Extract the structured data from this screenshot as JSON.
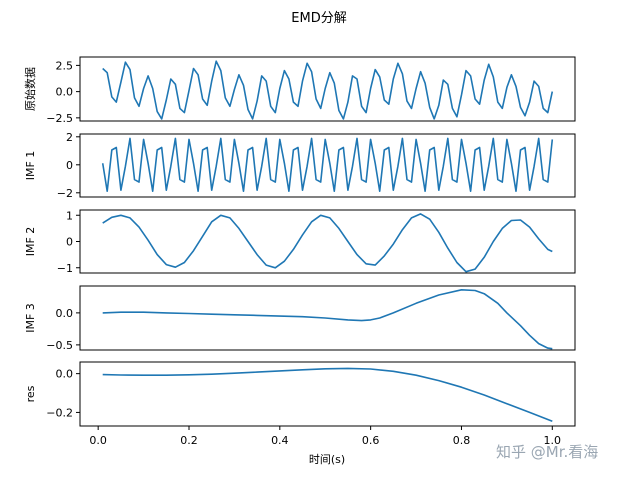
{
  "figure_title": "EMD分解",
  "x_axis_label": "时间(s)",
  "watermark": "知乎 @Mr.看海",
  "colors": {
    "line": "#1f77b4",
    "frame": "#000000",
    "watermark": "#9aa6b2"
  },
  "chart_data": [
    {
      "type": "line",
      "ylabel": "原始数据",
      "ylim": [
        -2.8,
        3.3
      ],
      "yticks": [
        2.5,
        0.0,
        -2.5
      ],
      "yticklabels": [
        "2.5",
        "0.0",
        "−2.5"
      ],
      "xlim": [
        -0.04,
        1.05
      ],
      "show_xticklabels": false,
      "x": [
        0.01,
        0.02,
        0.03,
        0.04,
        0.05,
        0.06,
        0.07,
        0.08,
        0.09,
        0.1,
        0.11,
        0.12,
        0.13,
        0.14,
        0.15,
        0.16,
        0.17,
        0.18,
        0.19,
        0.2,
        0.21,
        0.22,
        0.23,
        0.24,
        0.25,
        0.26,
        0.27,
        0.28,
        0.29,
        0.3,
        0.31,
        0.32,
        0.33,
        0.34,
        0.35,
        0.36,
        0.37,
        0.38,
        0.39,
        0.4,
        0.41,
        0.42,
        0.43,
        0.44,
        0.45,
        0.46,
        0.47,
        0.48,
        0.49,
        0.5,
        0.51,
        0.52,
        0.53,
        0.54,
        0.55,
        0.56,
        0.57,
        0.58,
        0.59,
        0.6,
        0.61,
        0.62,
        0.63,
        0.64,
        0.65,
        0.66,
        0.67,
        0.68,
        0.69,
        0.7,
        0.71,
        0.72,
        0.73,
        0.74,
        0.75,
        0.76,
        0.77,
        0.78,
        0.79,
        0.8,
        0.81,
        0.82,
        0.83,
        0.84,
        0.85,
        0.86,
        0.87,
        0.88,
        0.89,
        0.9,
        0.91,
        0.92,
        0.93,
        0.94,
        0.95,
        0.96,
        0.97,
        0.98,
        0.99,
        1.0
      ],
      "values": [
        2.2,
        1.8,
        -0.5,
        -1.0,
        0.9,
        2.8,
        2.1,
        -0.6,
        -1.4,
        0.3,
        1.5,
        0.3,
        -1.9,
        -2.6,
        -0.8,
        1.2,
        0.7,
        -1.6,
        -2.0,
        0.1,
        2.2,
        1.6,
        -0.7,
        -1.3,
        1.0,
        2.9,
        2.0,
        -0.6,
        -1.4,
        0.2,
        1.6,
        0.6,
        -1.7,
        -2.6,
        -0.9,
        1.5,
        1.0,
        -1.4,
        -2.0,
        0.3,
        2.0,
        1.2,
        -1.0,
        -1.4,
        1.0,
        2.7,
        1.9,
        -0.7,
        -1.6,
        0.3,
        1.8,
        0.8,
        -1.8,
        -2.6,
        -1.0,
        1.5,
        1.2,
        -1.4,
        -2.0,
        0.3,
        2.1,
        1.4,
        -0.8,
        -1.2,
        1.2,
        2.7,
        1.7,
        -0.9,
        -1.6,
        0.3,
        1.9,
        0.8,
        -1.5,
        -2.6,
        -1.3,
        1.1,
        0.7,
        -1.6,
        -2.4,
        -0.3,
        2.0,
        1.5,
        -0.7,
        -1.2,
        1.1,
        2.6,
        1.4,
        -1.0,
        -1.6,
        0.4,
        1.6,
        0.5,
        -1.5,
        -2.3,
        -1.0,
        1.0,
        0.5,
        -1.6,
        -2.0,
        0.0
      ]
    },
    {
      "type": "line",
      "ylabel": "IMF 1",
      "ylim": [
        -2.3,
        2.2
      ],
      "yticks": [
        2,
        0,
        -2
      ],
      "yticklabels": [
        "2",
        "0",
        "−2"
      ],
      "xlim": [
        -0.04,
        1.05
      ],
      "show_xticklabels": false,
      "sine": {
        "freq": 30,
        "amp": 1.95,
        "phase": 1.2,
        "dt": 0.01,
        "start": 0.01,
        "end": 1.0
      }
    },
    {
      "type": "line",
      "ylabel": "IMF 2",
      "ylim": [
        -1.2,
        1.2
      ],
      "yticks": [
        1,
        0,
        -1
      ],
      "yticklabels": [
        "1",
        "0",
        "−1"
      ],
      "xlim": [
        -0.04,
        1.05
      ],
      "show_xticklabels": false,
      "x": [
        0.01,
        0.03,
        0.05,
        0.07,
        0.09,
        0.11,
        0.13,
        0.15,
        0.17,
        0.19,
        0.21,
        0.23,
        0.25,
        0.27,
        0.29,
        0.31,
        0.33,
        0.35,
        0.37,
        0.39,
        0.41,
        0.43,
        0.45,
        0.47,
        0.49,
        0.51,
        0.53,
        0.55,
        0.57,
        0.59,
        0.61,
        0.63,
        0.65,
        0.67,
        0.69,
        0.71,
        0.73,
        0.75,
        0.77,
        0.79,
        0.81,
        0.83,
        0.85,
        0.87,
        0.89,
        0.91,
        0.93,
        0.95,
        0.97,
        0.99,
        1.0
      ],
      "values": [
        0.7,
        0.92,
        1.0,
        0.9,
        0.55,
        0.05,
        -0.5,
        -0.88,
        -0.98,
        -0.8,
        -0.35,
        0.2,
        0.75,
        1.0,
        0.9,
        0.5,
        0.0,
        -0.5,
        -0.9,
        -1.0,
        -0.75,
        -0.3,
        0.25,
        0.75,
        1.0,
        0.9,
        0.5,
        0.0,
        -0.5,
        -0.85,
        -0.9,
        -0.55,
        -0.1,
        0.45,
        0.9,
        1.05,
        0.85,
        0.35,
        -0.25,
        -0.8,
        -1.15,
        -1.05,
        -0.6,
        0.0,
        0.5,
        0.8,
        0.82,
        0.55,
        0.1,
        -0.3,
        -0.38
      ]
    },
    {
      "type": "line",
      "ylabel": "IMF 3",
      "ylim": [
        -0.58,
        0.42
      ],
      "yticks": [
        0.0,
        -0.5
      ],
      "yticklabels": [
        "0.0",
        "−0.5"
      ],
      "xlim": [
        -0.04,
        1.05
      ],
      "show_xticklabels": false,
      "x": [
        0.01,
        0.05,
        0.1,
        0.15,
        0.2,
        0.25,
        0.3,
        0.35,
        0.4,
        0.45,
        0.5,
        0.55,
        0.58,
        0.6,
        0.62,
        0.65,
        0.7,
        0.75,
        0.8,
        0.83,
        0.85,
        0.88,
        0.9,
        0.93,
        0.95,
        0.97,
        0.99,
        1.0
      ],
      "values": [
        0.0,
        0.01,
        0.01,
        0.0,
        -0.01,
        -0.02,
        -0.03,
        -0.04,
        -0.05,
        -0.06,
        -0.08,
        -0.11,
        -0.12,
        -0.11,
        -0.08,
        0.0,
        0.15,
        0.28,
        0.36,
        0.35,
        0.3,
        0.15,
        0.0,
        -0.2,
        -0.35,
        -0.48,
        -0.55,
        -0.56
      ]
    },
    {
      "type": "line",
      "ylabel": "res",
      "ylim": [
        -0.27,
        0.06
      ],
      "yticks": [
        0.0,
        -0.2
      ],
      "yticklabels": [
        "0.0",
        "−0.2"
      ],
      "xlim": [
        -0.04,
        1.05
      ],
      "show_xticklabels": true,
      "xticks": [
        0.0,
        0.2,
        0.4,
        0.6,
        0.8,
        1.0
      ],
      "xticklabels": [
        "0.0",
        "0.2",
        "0.4",
        "0.6",
        "0.8",
        "1.0"
      ],
      "x": [
        0.01,
        0.05,
        0.1,
        0.15,
        0.2,
        0.25,
        0.3,
        0.35,
        0.4,
        0.45,
        0.5,
        0.55,
        0.6,
        0.65,
        0.7,
        0.75,
        0.8,
        0.85,
        0.9,
        0.95,
        1.0
      ],
      "values": [
        -0.005,
        -0.007,
        -0.008,
        -0.008,
        -0.006,
        -0.003,
        0.002,
        0.008,
        0.014,
        0.02,
        0.025,
        0.027,
        0.024,
        0.012,
        -0.008,
        -0.036,
        -0.07,
        -0.11,
        -0.155,
        -0.2,
        -0.245
      ]
    }
  ]
}
